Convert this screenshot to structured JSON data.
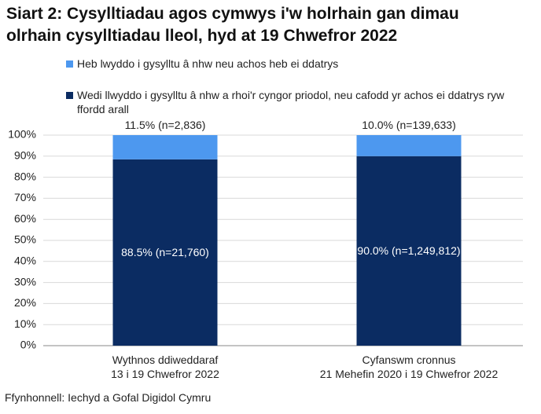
{
  "chart_data": {
    "type": "stacked_bar",
    "title": "Siart 2: Cysylltiadau agos cymwys i'w holrhain gan dimau\nolrhain cysylltiadau lleol, hyd at 19 Chwefror 2022",
    "categories": [
      "Wythnos ddiweddaraf\n13 i 19 Chwefror 2022",
      "Cyfanswm cronnus\n21 Mehefin 2020 i 19 Chwefror 2022"
    ],
    "series": [
      {
        "name": "Wedi llwyddo i gysylltu â nhw a rhoi'r cyngor priodol, neu cafodd yr achos ei ddatrys ryw ffordd arall",
        "color": "#0b2c62",
        "values": [
          88.5,
          90.0
        ],
        "value_labels": [
          "88.5% (n=21,760)",
          "90.0% (n=1,249,812)"
        ]
      },
      {
        "name": "Heb lwyddo i gysylltu â nhw neu achos heb ei ddatrys",
        "color": "#4d98ef",
        "values": [
          11.5,
          10.0
        ],
        "value_labels": [
          "11.5% (n=2,836)",
          "10.0% (n=139,633)"
        ]
      }
    ],
    "ylim": [
      0,
      100
    ],
    "yticks": [
      {
        "value": 0,
        "label": "0%"
      },
      {
        "value": 10,
        "label": "10%"
      },
      {
        "value": 20,
        "label": "20%"
      },
      {
        "value": 30,
        "label": "30%"
      },
      {
        "value": 40,
        "label": "40%"
      },
      {
        "value": 50,
        "label": "50%"
      },
      {
        "value": 60,
        "label": "60%"
      },
      {
        "value": 70,
        "label": "70%"
      },
      {
        "value": 80,
        "label": "80%"
      },
      {
        "value": 90,
        "label": "90%"
      },
      {
        "value": 100,
        "label": "100%"
      }
    ],
    "grid": true,
    "source": "Ffynhonnell: Iechyd a Gofal Digidol Cymru"
  }
}
